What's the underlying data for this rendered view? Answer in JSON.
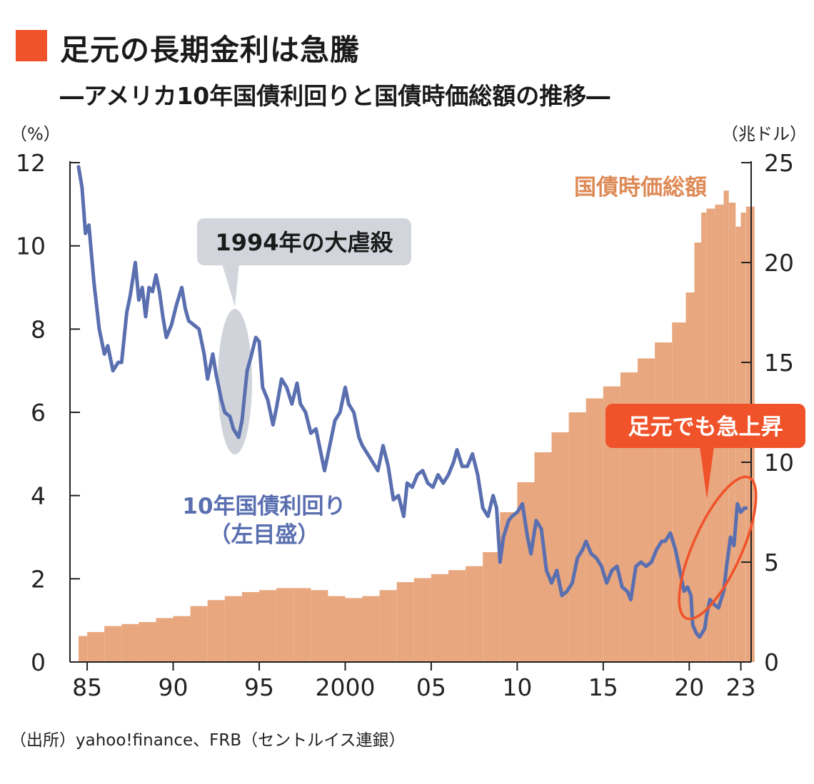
{
  "title": "足元の長期金利は急騰",
  "subtitle": "―アメリカ10年国債利回りと国債時価総額の推移―",
  "source": "（出所）yahoo!finance、FRB（セントルイス連銀）",
  "colors": {
    "accent": "#f0522a",
    "yield_line": "#5a6fb0",
    "bar_fill": "#e8a77f",
    "bar_label": "#de8a56",
    "callout_gray": "#d2d6dc",
    "axis": "#222222"
  },
  "chart_data": {
    "type": "line+bar",
    "left_axis": {
      "unit_label": "（%）",
      "range": [
        0,
        12
      ],
      "ticks": [
        0,
        2,
        4,
        6,
        8,
        10,
        12
      ],
      "tick_labels": [
        "0",
        "2",
        "4",
        "6",
        "8",
        "10",
        "12"
      ]
    },
    "right_axis": {
      "unit_label": "（兆ドル）",
      "range": [
        0,
        25
      ],
      "ticks": [
        0,
        5,
        10,
        15,
        20,
        25
      ],
      "tick_labels": [
        "0",
        "5",
        "10",
        "15",
        "20",
        "25"
      ]
    },
    "x_axis": {
      "range": [
        1984,
        2023.6
      ],
      "ticks": [
        1985,
        1990,
        1995,
        2000,
        2005,
        2010,
        2015,
        2020,
        2023
      ],
      "tick_labels": [
        "85",
        "90",
        "95",
        "2000",
        "05",
        "10",
        "15",
        "20",
        "23"
      ]
    },
    "series": [
      {
        "name": "10年国債利回り",
        "label_lines": [
          "10年国債利回り",
          "（左目盛）"
        ],
        "axis": "left",
        "kind": "line",
        "x": [
          1984.5,
          1984.7,
          1984.9,
          1985.1,
          1985.4,
          1985.7,
          1986.0,
          1986.2,
          1986.5,
          1986.8,
          1987.0,
          1987.3,
          1987.5,
          1987.8,
          1988.0,
          1988.2,
          1988.4,
          1988.6,
          1988.8,
          1989.0,
          1989.2,
          1989.4,
          1989.6,
          1989.9,
          1990.2,
          1990.5,
          1990.7,
          1990.9,
          1991.2,
          1991.5,
          1991.8,
          1992.0,
          1992.3,
          1992.5,
          1992.8,
          1993.0,
          1993.3,
          1993.5,
          1993.8,
          1994.0,
          1994.3,
          1994.5,
          1994.8,
          1995.0,
          1995.2,
          1995.5,
          1995.8,
          1996.0,
          1996.3,
          1996.6,
          1996.9,
          1997.2,
          1997.4,
          1997.7,
          1998.0,
          1998.3,
          1998.5,
          1998.8,
          1999.1,
          1999.4,
          1999.7,
          2000.0,
          2000.2,
          2000.5,
          2000.8,
          2001.0,
          2001.3,
          2001.6,
          2001.9,
          2002.2,
          2002.5,
          2002.8,
          2003.1,
          2003.4,
          2003.6,
          2003.9,
          2004.2,
          2004.5,
          2004.8,
          2005.1,
          2005.4,
          2005.7,
          2006.0,
          2006.3,
          2006.5,
          2006.8,
          2007.1,
          2007.4,
          2007.7,
          2008.0,
          2008.3,
          2008.6,
          2008.8,
          2009.0,
          2009.2,
          2009.5,
          2009.7,
          2010.0,
          2010.3,
          2010.6,
          2010.8,
          2011.1,
          2011.4,
          2011.7,
          2012.0,
          2012.3,
          2012.6,
          2012.9,
          2013.2,
          2013.5,
          2013.8,
          2014.0,
          2014.3,
          2014.6,
          2014.9,
          2015.2,
          2015.5,
          2015.8,
          2016.1,
          2016.4,
          2016.6,
          2016.9,
          2017.2,
          2017.5,
          2017.8,
          2018.1,
          2018.4,
          2018.6,
          2018.9,
          2019.2,
          2019.5,
          2019.7,
          2019.9,
          2020.1,
          2020.2,
          2020.4,
          2020.6,
          2020.9,
          2021.0,
          2021.2,
          2021.4,
          2021.7,
          2022.0,
          2022.2,
          2022.4,
          2022.6,
          2022.8,
          2023.0,
          2023.2,
          2023.3
        ],
        "y": [
          11.9,
          11.4,
          10.3,
          10.5,
          9.1,
          8.0,
          7.4,
          7.6,
          7.0,
          7.2,
          7.2,
          8.4,
          8.8,
          9.6,
          8.7,
          9.0,
          8.3,
          9.0,
          8.9,
          9.3,
          8.9,
          8.3,
          7.8,
          8.1,
          8.6,
          9.0,
          8.5,
          8.2,
          8.1,
          8.0,
          7.4,
          6.8,
          7.4,
          6.9,
          6.3,
          6.0,
          5.9,
          5.6,
          5.4,
          5.8,
          7.0,
          7.3,
          7.8,
          7.7,
          6.6,
          6.3,
          5.7,
          6.1,
          6.8,
          6.6,
          6.2,
          6.7,
          6.2,
          6.0,
          5.5,
          5.6,
          5.2,
          4.6,
          5.2,
          5.8,
          6.0,
          6.6,
          6.2,
          6.0,
          5.4,
          5.2,
          5.0,
          4.8,
          4.6,
          5.2,
          4.7,
          3.9,
          4.0,
          3.5,
          4.3,
          4.2,
          4.5,
          4.6,
          4.3,
          4.2,
          4.5,
          4.3,
          4.5,
          4.8,
          5.1,
          4.7,
          4.7,
          5.0,
          4.5,
          3.7,
          3.5,
          4.0,
          3.7,
          2.4,
          3.0,
          3.4,
          3.5,
          3.6,
          3.8,
          3.0,
          2.6,
          3.4,
          3.2,
          2.2,
          1.9,
          2.2,
          1.6,
          1.7,
          1.9,
          2.5,
          2.7,
          2.9,
          2.6,
          2.5,
          2.3,
          1.9,
          2.2,
          2.3,
          1.8,
          1.7,
          1.5,
          2.3,
          2.4,
          2.3,
          2.4,
          2.7,
          2.9,
          2.9,
          3.1,
          2.7,
          2.1,
          1.7,
          1.8,
          1.6,
          0.9,
          0.7,
          0.6,
          0.8,
          1.1,
          1.5,
          1.4,
          1.3,
          1.7,
          2.4,
          3.0,
          2.8,
          3.8,
          3.6,
          3.7,
          3.7
        ]
      },
      {
        "name": "国債時価総額",
        "axis": "right",
        "kind": "bar",
        "x": [
          1984.5,
          1985,
          1986,
          1987,
          1988,
          1989,
          1990,
          1991,
          1992,
          1993,
          1994,
          1995,
          1996,
          1997,
          1998,
          1999,
          2000,
          2001,
          2002,
          2003,
          2004,
          2005,
          2006,
          2007,
          2008,
          2009,
          2010,
          2011,
          2012,
          2013,
          2014,
          2015,
          2016,
          2017,
          2018,
          2019,
          2019.8,
          2020.3,
          2020.7,
          2021,
          2021.5,
          2022,
          2022.3,
          2022.7,
          2023,
          2023.3
        ],
        "y": [
          1.3,
          1.5,
          1.8,
          1.9,
          2.0,
          2.2,
          2.3,
          2.8,
          3.1,
          3.3,
          3.5,
          3.6,
          3.7,
          3.7,
          3.6,
          3.3,
          3.2,
          3.3,
          3.6,
          4.0,
          4.2,
          4.4,
          4.6,
          4.8,
          5.5,
          7.5,
          9.0,
          10.5,
          11.5,
          12.5,
          13.2,
          13.8,
          14.5,
          15.2,
          16.0,
          17.0,
          18.5,
          21.0,
          22.5,
          22.7,
          22.9,
          23.6,
          23.0,
          21.8,
          22.5,
          22.8
        ]
      }
    ],
    "annotations": [
      {
        "text": "1994年の大虐殺",
        "target_x": 1994.2,
        "kind": "gray-callout"
      },
      {
        "text": "足元でも急上昇",
        "target_x": 2021.7,
        "kind": "red-callout"
      },
      {
        "text": "国債時価総額",
        "kind": "series-label"
      }
    ]
  }
}
